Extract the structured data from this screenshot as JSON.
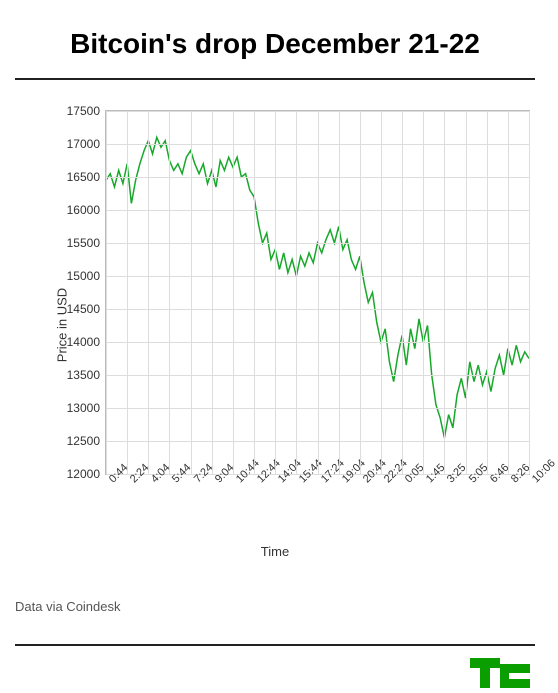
{
  "title": "Bitcoin's drop December 21-22",
  "attribution": "Data via Coindesk",
  "chart": {
    "type": "line",
    "xlabel": "Time",
    "ylabel": "Price in USD",
    "ylim": [
      12000,
      17500
    ],
    "ytick_step": 500,
    "yticks": [
      12000,
      12500,
      13000,
      13500,
      14000,
      14500,
      15000,
      15500,
      16000,
      16500,
      17000,
      17500
    ],
    "xticks": [
      "0:44",
      "2:24",
      "4:04",
      "5:44",
      "7:24",
      "9:04",
      "10:44",
      "12:44",
      "14:04",
      "15:44",
      "17:24",
      "19:04",
      "20:44",
      "22:24",
      "0:05",
      "1:45",
      "3:25",
      "5:05",
      "6:46",
      "8:26",
      "10:06"
    ],
    "line_color": "#17a82a",
    "grid_color": "#dddddd",
    "border_color": "#bbbbbb",
    "background_color": "#ffffff",
    "text_color": "#333333",
    "title_fontsize": 28,
    "label_fontsize": 13,
    "tick_fontsize": 12,
    "line_width": 1.5,
    "data": [
      [
        0,
        16450
      ],
      [
        1,
        16550
      ],
      [
        2,
        16350
      ],
      [
        3,
        16600
      ],
      [
        4,
        16400
      ],
      [
        5,
        16700
      ],
      [
        6,
        16100
      ],
      [
        7,
        16450
      ],
      [
        8,
        16700
      ],
      [
        9,
        16900
      ],
      [
        10,
        17050
      ],
      [
        11,
        16850
      ],
      [
        12,
        17100
      ],
      [
        13,
        16950
      ],
      [
        14,
        17050
      ],
      [
        15,
        16750
      ],
      [
        16,
        16600
      ],
      [
        17,
        16700
      ],
      [
        18,
        16550
      ],
      [
        19,
        16800
      ],
      [
        20,
        16900
      ],
      [
        21,
        16700
      ],
      [
        22,
        16550
      ],
      [
        23,
        16700
      ],
      [
        24,
        16400
      ],
      [
        25,
        16600
      ],
      [
        26,
        16350
      ],
      [
        27,
        16750
      ],
      [
        28,
        16600
      ],
      [
        29,
        16800
      ],
      [
        30,
        16650
      ],
      [
        31,
        16800
      ],
      [
        32,
        16500
      ],
      [
        33,
        16550
      ],
      [
        34,
        16300
      ],
      [
        35,
        16200
      ],
      [
        36,
        15800
      ],
      [
        37,
        15500
      ],
      [
        38,
        15650
      ],
      [
        39,
        15250
      ],
      [
        40,
        15400
      ],
      [
        41,
        15100
      ],
      [
        42,
        15350
      ],
      [
        43,
        15050
      ],
      [
        44,
        15250
      ],
      [
        45,
        15000
      ],
      [
        46,
        15300
      ],
      [
        47,
        15150
      ],
      [
        48,
        15350
      ],
      [
        49,
        15200
      ],
      [
        50,
        15500
      ],
      [
        51,
        15350
      ],
      [
        52,
        15550
      ],
      [
        53,
        15700
      ],
      [
        54,
        15500
      ],
      [
        55,
        15750
      ],
      [
        56,
        15400
      ],
      [
        57,
        15550
      ],
      [
        58,
        15250
      ],
      [
        59,
        15100
      ],
      [
        60,
        15300
      ],
      [
        61,
        14900
      ],
      [
        62,
        14600
      ],
      [
        63,
        14750
      ],
      [
        64,
        14300
      ],
      [
        65,
        14000
      ],
      [
        66,
        14200
      ],
      [
        67,
        13700
      ],
      [
        68,
        13400
      ],
      [
        69,
        13800
      ],
      [
        70,
        14100
      ],
      [
        71,
        13650
      ],
      [
        72,
        14200
      ],
      [
        73,
        13900
      ],
      [
        74,
        14350
      ],
      [
        75,
        14000
      ],
      [
        76,
        14250
      ],
      [
        77,
        13500
      ],
      [
        78,
        13050
      ],
      [
        79,
        12850
      ],
      [
        80,
        12550
      ],
      [
        81,
        12900
      ],
      [
        82,
        12700
      ],
      [
        83,
        13200
      ],
      [
        84,
        13450
      ],
      [
        85,
        13150
      ],
      [
        86,
        13700
      ],
      [
        87,
        13400
      ],
      [
        88,
        13650
      ],
      [
        89,
        13350
      ],
      [
        90,
        13550
      ],
      [
        91,
        13250
      ],
      [
        92,
        13600
      ],
      [
        93,
        13800
      ],
      [
        94,
        13500
      ],
      [
        95,
        13900
      ],
      [
        96,
        13650
      ],
      [
        97,
        13950
      ],
      [
        98,
        13700
      ],
      [
        99,
        13850
      ],
      [
        100,
        13750
      ]
    ],
    "x_range": [
      0,
      100
    ]
  },
  "logo": {
    "color": "#0a9e01",
    "label": "TC"
  }
}
